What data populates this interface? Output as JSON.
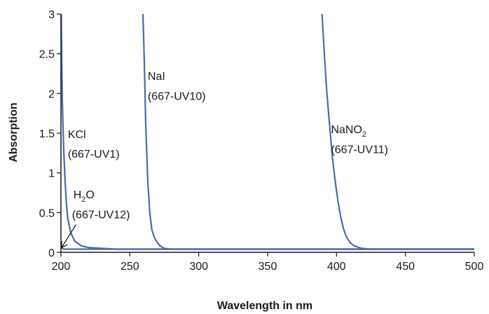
{
  "chart_data": {
    "type": "line",
    "title": "",
    "xlabel": "Wavelength in nm",
    "ylabel": "Absorption",
    "xlim": [
      200,
      500
    ],
    "ylim": [
      0,
      3
    ],
    "x_ticks": [
      200,
      250,
      300,
      350,
      400,
      450,
      500
    ],
    "y_ticks": [
      0,
      0.5,
      1,
      1.5,
      2,
      2.5,
      3
    ],
    "grid": false,
    "legend": "none",
    "line_color": "#4a6aa8",
    "series": [
      {
        "id": "h2o",
        "points": [
          [
            200,
            0.06
          ],
          [
            201,
            0.05
          ],
          [
            202,
            0.04
          ],
          [
            210,
            0.04
          ],
          [
            300,
            0.04
          ],
          [
            400,
            0.04
          ],
          [
            500,
            0.04
          ]
        ]
      },
      {
        "id": "kcl",
        "points": [
          [
            200.2,
            3.0
          ],
          [
            200.6,
            2.4
          ],
          [
            201,
            1.9
          ],
          [
            202,
            1.3
          ],
          [
            203,
            0.9
          ],
          [
            204,
            0.6
          ],
          [
            205,
            0.42
          ],
          [
            207,
            0.25
          ],
          [
            210,
            0.14
          ],
          [
            215,
            0.08
          ],
          [
            220,
            0.06
          ],
          [
            230,
            0.05
          ],
          [
            240,
            0.04
          ],
          [
            300,
            0.04
          ],
          [
            500,
            0.04
          ]
        ]
      },
      {
        "id": "nai",
        "points": [
          [
            259.5,
            3.0
          ],
          [
            260.5,
            2.4
          ],
          [
            261.5,
            1.65
          ],
          [
            263,
            0.9
          ],
          [
            264.5,
            0.5
          ],
          [
            266,
            0.28
          ],
          [
            268,
            0.18
          ],
          [
            270,
            0.12
          ],
          [
            272,
            0.08
          ],
          [
            275,
            0.05
          ],
          [
            280,
            0.04
          ],
          [
            300,
            0.04
          ],
          [
            500,
            0.04
          ]
        ]
      },
      {
        "id": "nano2",
        "points": [
          [
            389.5,
            3.0
          ],
          [
            391,
            2.55
          ],
          [
            393,
            2.0
          ],
          [
            395,
            1.6
          ],
          [
            397,
            1.2
          ],
          [
            399,
            0.9
          ],
          [
            401,
            0.65
          ],
          [
            403,
            0.45
          ],
          [
            405,
            0.3
          ],
          [
            407,
            0.2
          ],
          [
            410,
            0.12
          ],
          [
            413,
            0.08
          ],
          [
            418,
            0.05
          ],
          [
            425,
            0.04
          ],
          [
            500,
            0.04
          ]
        ]
      }
    ],
    "annotations": [
      {
        "id": "kcl-name",
        "text": "KCl",
        "x": 205,
        "y": 1.44
      },
      {
        "id": "kcl-code",
        "text": "(667-UV1)",
        "x": 205,
        "y": 1.19
      },
      {
        "id": "nai-name",
        "text": "NaI",
        "x": 263,
        "y": 2.17
      },
      {
        "id": "nai-code",
        "text": "(667-UV10)",
        "x": 263,
        "y": 1.92
      },
      {
        "id": "nano2-name",
        "text": "NaNO",
        "sub": "2",
        "x": 396,
        "y": 1.5
      },
      {
        "id": "nano2-code",
        "text": "(667-UV11)",
        "x": 396,
        "y": 1.25
      },
      {
        "id": "h2o-name",
        "text": "H",
        "sub": "2",
        "after": "O",
        "x": 209,
        "y": 0.68
      },
      {
        "id": "h2o-code",
        "text": "(667-UV12)",
        "x": 208,
        "y": 0.43
      }
    ],
    "arrow": {
      "from": [
        211,
        0.35
      ],
      "to": [
        200.5,
        0.06
      ]
    }
  }
}
